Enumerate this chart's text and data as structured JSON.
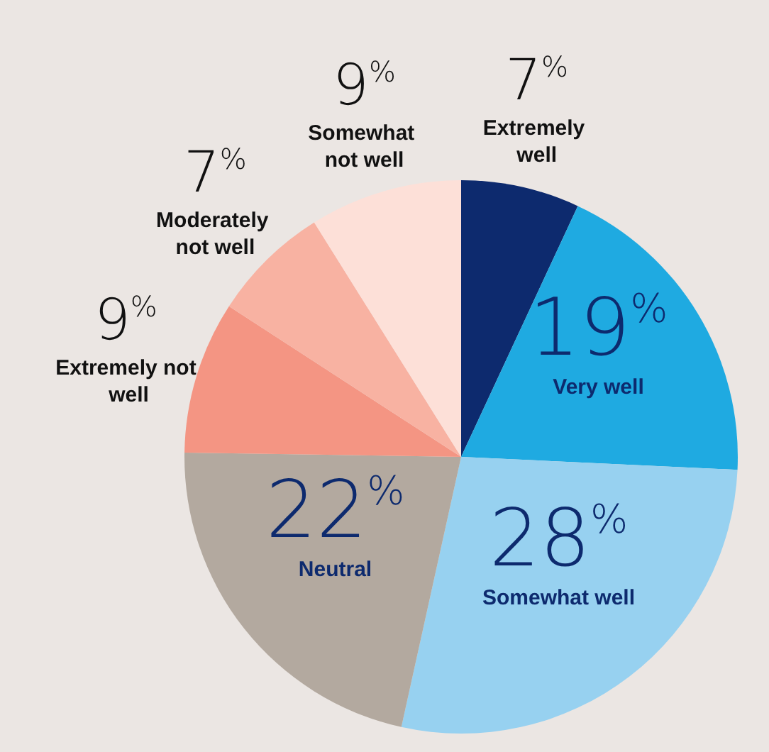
{
  "chart_data": {
    "type": "pie",
    "categories": [
      "Extremely well",
      "Very well",
      "Somewhat well",
      "Neutral",
      "Extremely not well",
      "Moderately not well",
      "Somewhat not well"
    ],
    "values": [
      7,
      19,
      28,
      22,
      9,
      7,
      9
    ],
    "colors": [
      "#0d2a6e",
      "#1faae1",
      "#97d1f0",
      "#b3a99f",
      "#f49583",
      "#f8b2a2",
      "#fde0d8"
    ],
    "value_labels": [
      "7%",
      "19%",
      "28%",
      "22%",
      "9%",
      "7%",
      "9%"
    ]
  }
}
